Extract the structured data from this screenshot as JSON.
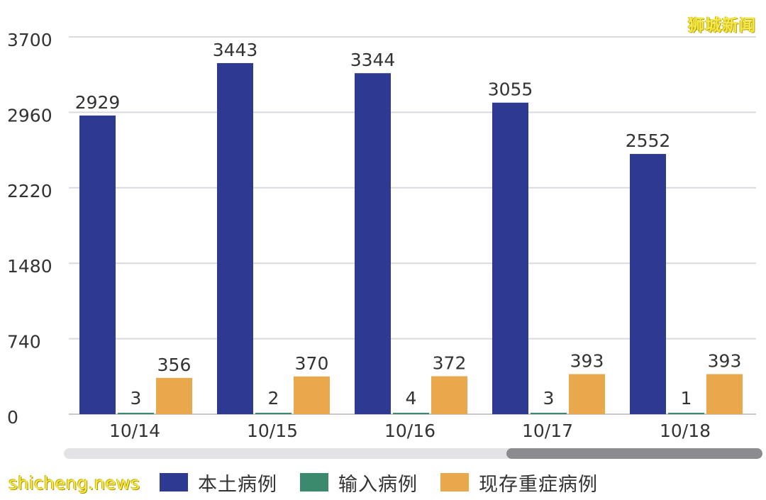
{
  "chart_data": {
    "type": "bar",
    "categories": [
      "10/14",
      "10/15",
      "10/16",
      "10/17",
      "10/18"
    ],
    "series": [
      {
        "name": "本土病例",
        "values": [
          2929,
          3443,
          3344,
          3055,
          2552
        ],
        "color": "#2e3a92"
      },
      {
        "name": "输入病例",
        "values": [
          3,
          2,
          4,
          3,
          1
        ],
        "color": "#3c8a6e"
      },
      {
        "name": "现存重症病例",
        "values": [
          356,
          370,
          372,
          393,
          393
        ],
        "color": "#e8a84b"
      }
    ],
    "y_ticks": [
      "3700",
      "2960",
      "2220",
      "1480",
      "740",
      "0"
    ],
    "ylim": [
      0,
      3700
    ],
    "grid": true,
    "legend_position": "bottom"
  },
  "watermarks": {
    "top_right": "狮城新闻",
    "bottom_left": "shicheng.news"
  },
  "colors": {
    "grid": "#d9d9de",
    "axis_text": "#333333",
    "scrollbar_track": "#e3e3e6",
    "scrollbar_thumb": "#8c8c90"
  }
}
